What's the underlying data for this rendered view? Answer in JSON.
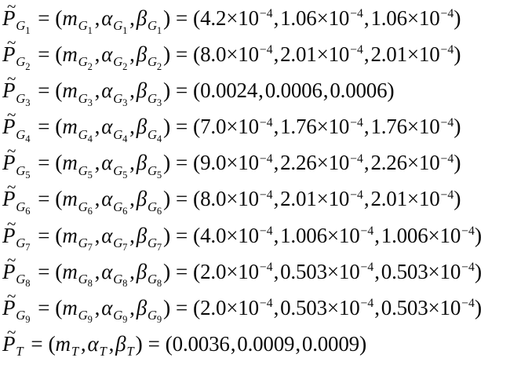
{
  "figure": {
    "background": "#ffffff",
    "ink": "#0a0a0a"
  },
  "math": {
    "tilde": "~",
    "equals": "=",
    "comma": ",",
    "open_paren": "(",
    "close_paren": ")",
    "times_ten": "×10"
  },
  "equations": [
    {
      "symbol": "P",
      "sub_letter": "G",
      "sub_index": "1",
      "params": [
        "m",
        "α",
        "β"
      ],
      "values": [
        {
          "mantissa": "4.2",
          "exponent": "−4"
        },
        {
          "mantissa": "1.06",
          "exponent": "−4"
        },
        {
          "mantissa": "1.06",
          "exponent": "−4"
        }
      ]
    },
    {
      "symbol": "P",
      "sub_letter": "G",
      "sub_index": "2",
      "params": [
        "m",
        "α",
        "β"
      ],
      "values": [
        {
          "mantissa": "8.0",
          "exponent": "−4"
        },
        {
          "mantissa": "2.01",
          "exponent": "−4"
        },
        {
          "mantissa": "2.01",
          "exponent": "−4"
        }
      ]
    },
    {
      "symbol": "P",
      "sub_letter": "G",
      "sub_index": "3",
      "params": [
        "m",
        "α",
        "β"
      ],
      "values": [
        {
          "mantissa": "0.0024"
        },
        {
          "mantissa": "0.0006"
        },
        {
          "mantissa": "0.0006"
        }
      ]
    },
    {
      "symbol": "P",
      "sub_letter": "G",
      "sub_index": "4",
      "params": [
        "m",
        "α",
        "β"
      ],
      "values": [
        {
          "mantissa": "7.0",
          "exponent": "−4"
        },
        {
          "mantissa": "1.76",
          "exponent": "−4"
        },
        {
          "mantissa": "1.76",
          "exponent": "−4"
        }
      ]
    },
    {
      "symbol": "P",
      "sub_letter": "G",
      "sub_index": "5",
      "params": [
        "m",
        "α",
        "β"
      ],
      "values": [
        {
          "mantissa": "9.0",
          "exponent": "−4"
        },
        {
          "mantissa": "2.26",
          "exponent": "−4"
        },
        {
          "mantissa": "2.26",
          "exponent": "−4"
        }
      ]
    },
    {
      "symbol": "P",
      "sub_letter": "G",
      "sub_index": "6",
      "params": [
        "m",
        "α",
        "β"
      ],
      "values": [
        {
          "mantissa": "8.0",
          "exponent": "−4"
        },
        {
          "mantissa": "2.01",
          "exponent": "−4"
        },
        {
          "mantissa": "2.01",
          "exponent": "−4"
        }
      ]
    },
    {
      "symbol": "P",
      "sub_letter": "G",
      "sub_index": "7",
      "params": [
        "m",
        "α",
        "β"
      ],
      "values": [
        {
          "mantissa": "4.0",
          "exponent": "−4"
        },
        {
          "mantissa": "1.006",
          "exponent": "−4"
        },
        {
          "mantissa": "1.006",
          "exponent": "−4"
        }
      ]
    },
    {
      "symbol": "P",
      "sub_letter": "G",
      "sub_index": "8",
      "params": [
        "m",
        "α",
        "β"
      ],
      "values": [
        {
          "mantissa": "2.0",
          "exponent": "−4"
        },
        {
          "mantissa": "0.503",
          "exponent": "−4"
        },
        {
          "mantissa": "0.503",
          "exponent": "−4"
        }
      ]
    },
    {
      "symbol": "P",
      "sub_letter": "G",
      "sub_index": "9",
      "params": [
        "m",
        "α",
        "β"
      ],
      "values": [
        {
          "mantissa": "2.0",
          "exponent": "−4"
        },
        {
          "mantissa": "0.503",
          "exponent": "−4"
        },
        {
          "mantissa": "0.503",
          "exponent": "−4"
        }
      ]
    },
    {
      "symbol": "P",
      "sub_letter": "T",
      "sub_index": "",
      "params": [
        "m",
        "α",
        "β"
      ],
      "values": [
        {
          "mantissa": "0.0036"
        },
        {
          "mantissa": "0.0009"
        },
        {
          "mantissa": "0.0009"
        }
      ]
    }
  ]
}
